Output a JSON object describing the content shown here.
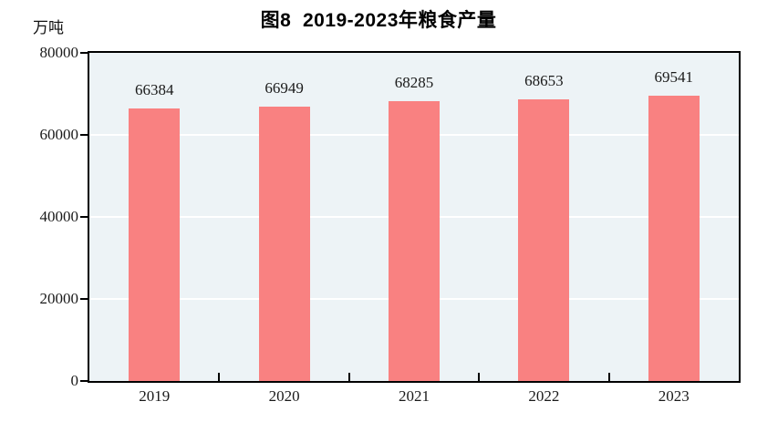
{
  "unit_label": "万吨",
  "chart_data": {
    "type": "bar",
    "title": "图8  2019-2023年粮食产量",
    "categories": [
      "2019",
      "2020",
      "2021",
      "2022",
      "2023"
    ],
    "values": [
      66384,
      66949,
      68285,
      68653,
      69541
    ],
    "xlabel": "",
    "ylabel": "万吨",
    "ylim": [
      0,
      80000
    ],
    "yticks": [
      0,
      20000,
      40000,
      60000,
      80000
    ],
    "grid": "horizontal",
    "legend": "none",
    "bar_value_labels_shown": true,
    "colors": {
      "bar": "#F98181",
      "plot_background": "#EDF3F6",
      "gridline": "#FFFFFF",
      "axis": "#000000",
      "text": "#1A1A1A",
      "page_background": "#FFFFFF"
    }
  }
}
